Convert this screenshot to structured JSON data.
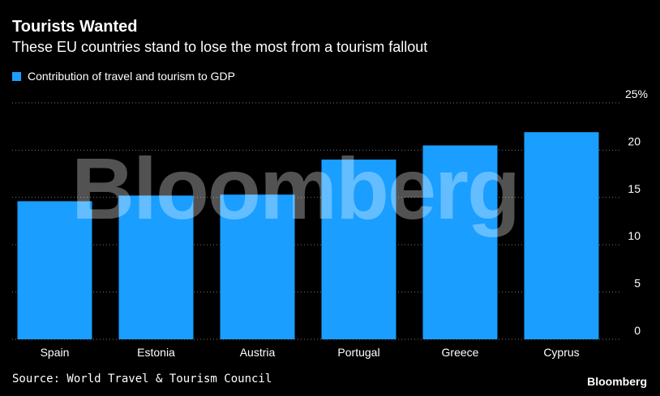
{
  "title": "Tourists Wanted",
  "subtitle": "These EU countries stand to lose the most from a tourism fallout",
  "legend_label": "Contribution of travel and tourism to GDP",
  "source": "Source: World Travel & Tourism Council",
  "brand": "Bloomberg",
  "watermark": "Bloomberg",
  "colors": {
    "bar": "#1a9eff",
    "background": "#000000",
    "grid": "#777777"
  },
  "chart_data": {
    "type": "bar",
    "categories": [
      "Spain",
      "Estonia",
      "Austria",
      "Portugal",
      "Greece",
      "Cyprus"
    ],
    "values": [
      14.6,
      15.2,
      15.3,
      19.0,
      20.5,
      21.9
    ],
    "ylim": [
      0,
      25
    ],
    "yticks": [
      0,
      5,
      10,
      15,
      20,
      25
    ],
    "ytick_labels": [
      "0",
      "5",
      "10",
      "15",
      "20",
      "25%"
    ],
    "grid": true
  }
}
